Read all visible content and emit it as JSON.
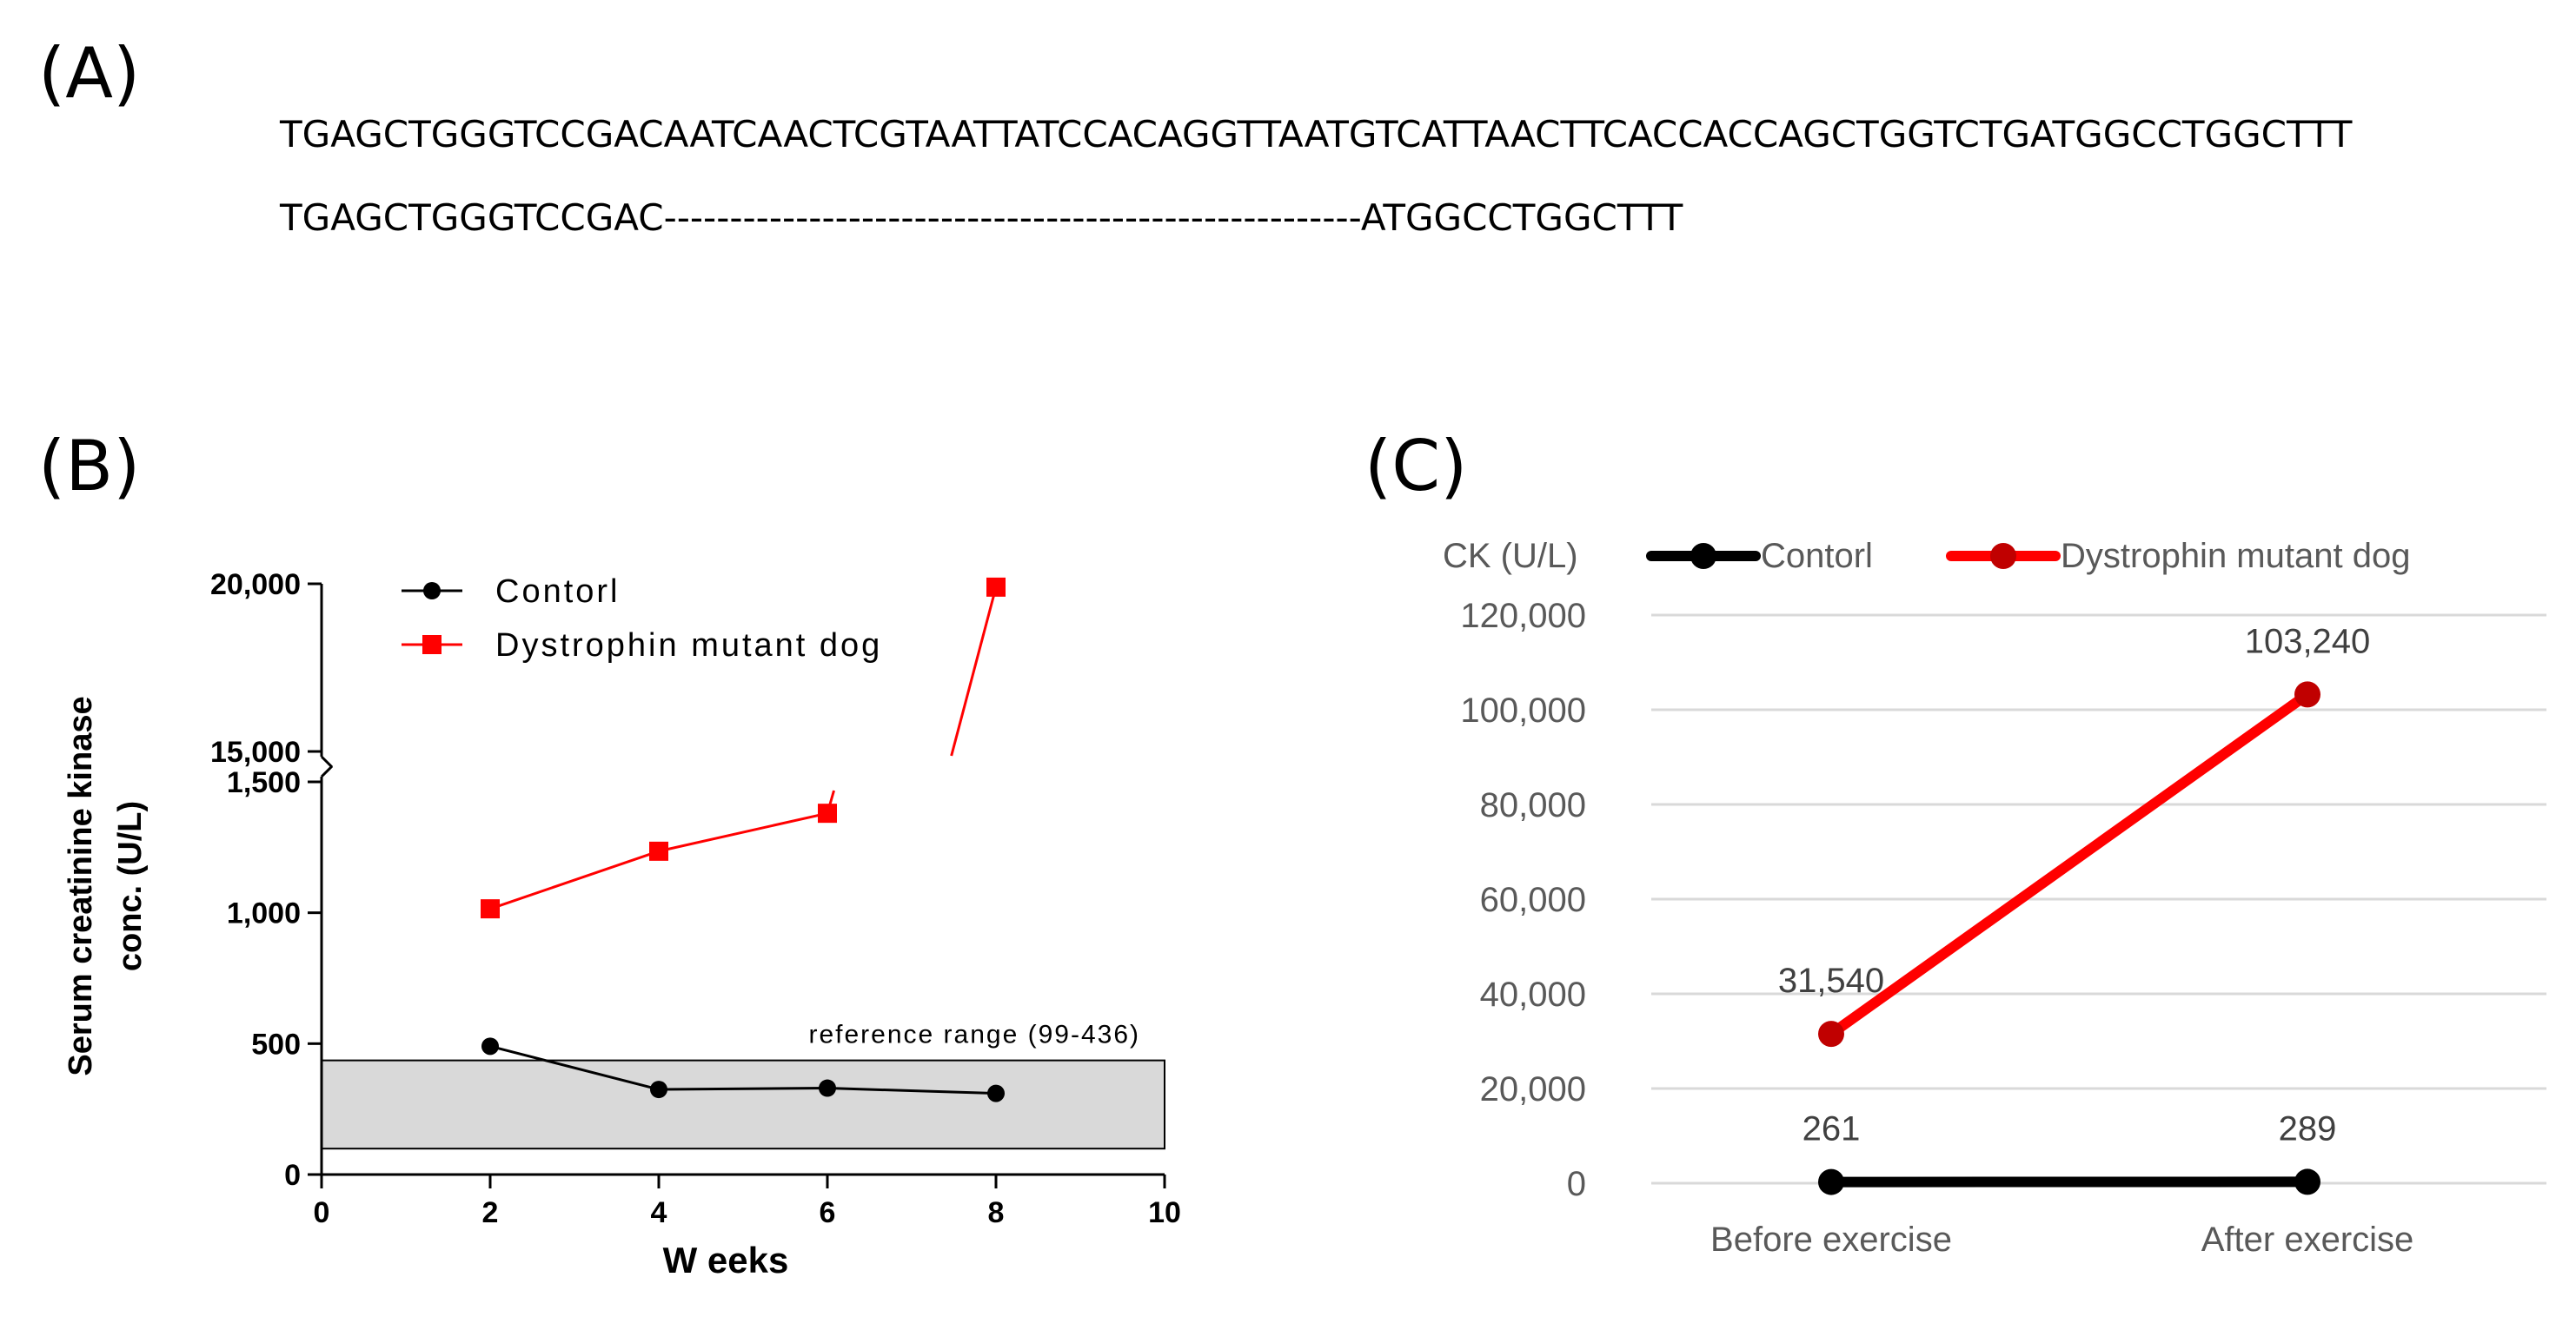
{
  "panels": {
    "a": {
      "label": "(A)"
    },
    "b": {
      "label": "(B)"
    },
    "c": {
      "label": "(C)"
    }
  },
  "sequence": {
    "wild_type": "TGAGCTGGGTCCGACAATCAACTCGTAATTATCCACAGGTTAATGTCATTAACTTCACCACCAGCTGGTCTGATGGCCTGGCTTT",
    "mutant": "TGAGCTGGGTCCGAC-----------------------------------------------------ATGGCCTGGCTTT"
  },
  "chart_data": [
    {
      "id": "B",
      "type": "line",
      "xlabel": "W eeks",
      "ylabel_line1": "Serum creatinine kinase",
      "ylabel_line2": "conc. (U/L)",
      "xlim": [
        0,
        10
      ],
      "x_ticks": [
        0,
        2,
        4,
        6,
        8,
        10
      ],
      "y_break": true,
      "y_lower_segment": {
        "range": [
          0,
          1500
        ],
        "ticks": [
          0,
          500,
          1000,
          1500
        ],
        "tick_labels": [
          "0",
          "500",
          "1,000",
          "1,500"
        ]
      },
      "y_upper_segment": {
        "range": [
          15000,
          20000
        ],
        "ticks": [
          15000,
          20000
        ],
        "tick_labels": [
          "15,000",
          "20,000"
        ]
      },
      "reference_band": {
        "low": 99,
        "high": 436,
        "label": "reference range (99-436)"
      },
      "legend_position": "top-left",
      "x": [
        2,
        4,
        6,
        8
      ],
      "series": [
        {
          "name": "Contorl",
          "values": [
            490,
            325,
            330,
            310
          ],
          "color": "#000000",
          "marker": "circle"
        },
        {
          "name": "Dystrophin mutant dog",
          "values": [
            1015,
            1235,
            1380,
            19900
          ],
          "color": "#ff0000",
          "marker": "square"
        }
      ]
    },
    {
      "id": "C",
      "type": "line",
      "y_unit_label": "CK (U/L)",
      "categories": [
        "Before exercise",
        "After exercise"
      ],
      "ylim": [
        0,
        120000
      ],
      "y_ticks": [
        0,
        20000,
        40000,
        60000,
        80000,
        100000,
        120000
      ],
      "y_tick_labels": [
        "0",
        "20,000",
        "40,000",
        "60,000",
        "80,000",
        "100,000",
        "120,000"
      ],
      "grid": true,
      "legend_position": "top",
      "series": [
        {
          "name": "Contorl",
          "values": [
            261,
            289
          ],
          "labels": [
            "261",
            "289"
          ],
          "color": "#000000"
        },
        {
          "name": "Dystrophin mutant dog",
          "values": [
            31540,
            103240
          ],
          "labels": [
            "31,540",
            "103,240"
          ],
          "color": "#ff0000",
          "marker_color": "#c00000"
        }
      ]
    }
  ]
}
